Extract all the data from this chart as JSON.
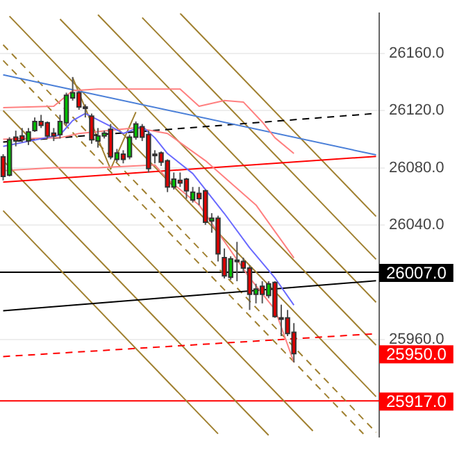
{
  "chart_data": {
    "type": "candlestick",
    "categories": [
      null,
      null,
      null,
      null,
      null,
      null,
      null,
      null,
      null,
      null,
      null,
      null,
      null,
      null,
      null,
      null,
      null,
      null,
      null,
      null,
      null,
      null,
      null,
      null,
      null,
      null,
      null,
      null,
      null,
      null,
      null,
      null,
      null,
      null,
      null,
      null,
      null,
      null,
      null,
      null,
      null,
      null,
      null,
      null,
      null,
      null,
      null,
      null,
      null,
      null,
      null,
      null,
      null,
      null,
      null,
      null,
      null,
      null,
      null,
      null
    ],
    "ohlc": [
      [
        26087.7,
        26089.5,
        26071.2,
        26074.0
      ],
      [
        26074.9,
        26101.4,
        26074.0,
        26099.6
      ],
      [
        26101.4,
        26106.0,
        26095.0,
        26098.7
      ],
      [
        26102.3,
        26107.8,
        26097.8,
        26099.6
      ],
      [
        26098.7,
        26107.8,
        26095.9,
        26105.1
      ],
      [
        26106.0,
        26115.2,
        26105.1,
        26112.4
      ],
      [
        26112.4,
        26117.0,
        26107.8,
        26109.7
      ],
      [
        26111.5,
        26112.4,
        26100.5,
        26102.3
      ],
      [
        26104.2,
        26107.8,
        26098.7,
        26102.3
      ],
      [
        26103.3,
        26117.0,
        26100.5,
        26112.4
      ],
      [
        26111.5,
        26132.5,
        26109.7,
        26130.7
      ],
      [
        26128.9,
        26143.5,
        26127.0,
        26132.5
      ],
      [
        26132.5,
        26133.5,
        26120.6,
        26122.5
      ],
      [
        26122.5,
        26124.3,
        26115.2,
        26121.6
      ],
      [
        26116.1,
        26117.9,
        26096.8,
        26099.6
      ],
      [
        26098.7,
        26107.8,
        26094.1,
        26102.3
      ],
      [
        26102.3,
        26106.0,
        26100.5,
        26104.2
      ],
      [
        26106.9,
        26110.6,
        26085.9,
        26087.7
      ],
      [
        26085.9,
        26093.2,
        26084.0,
        26090.4
      ],
      [
        26089.5,
        26092.3,
        26083.1,
        26085.9
      ],
      [
        26087.7,
        26103.3,
        26085.9,
        26101.4
      ],
      [
        26101.4,
        26112.4,
        26099.6,
        26110.6
      ],
      [
        26108.7,
        26110.6,
        26098.7,
        26101.4
      ],
      [
        26103.3,
        26106.0,
        26076.7,
        26079.5
      ],
      [
        26089.5,
        26092.3,
        26083.1,
        26088.6
      ],
      [
        26090.4,
        26091.4,
        26081.3,
        26084.0
      ],
      [
        26084.9,
        26085.9,
        26063.0,
        26066.6
      ],
      [
        26066.6,
        26076.7,
        26064.8,
        26072.1
      ],
      [
        26071.2,
        26076.7,
        26066.6,
        26069.4
      ],
      [
        26072.1,
        26073.0,
        26058.4,
        26063.9
      ],
      [
        26057.5,
        26066.6,
        26055.7,
        26063.0
      ],
      [
        26062.1,
        26066.6,
        26053.8,
        26058.4
      ],
      [
        26063.9,
        26064.8,
        26040.1,
        26041.9
      ],
      [
        26042.8,
        26048.3,
        26034.6,
        26044.7
      ],
      [
        26044.7,
        26046.5,
        26014.5,
        26019.9
      ],
      [
        26017.2,
        26023.6,
        26002.6,
        26004.4
      ],
      [
        26003.5,
        26018.1,
        26001.7,
        26016.3
      ],
      [
        26015.4,
        26028.2,
        26000.7,
        26014.5
      ],
      [
        26014.5,
        26017.2,
        26007.1,
        26009.9
      ],
      [
        26009.9,
        26011.7,
        25980.6,
        25991.6
      ],
      [
        25991.6,
        25998.9,
        25985.2,
        25995.2
      ],
      [
        25997.1,
        26000.7,
        25985.2,
        25991.6
      ],
      [
        25990.7,
        26000.7,
        25988.8,
        25998.9
      ],
      [
        25999.8,
        26000.7,
        25975.1,
        25976.0
      ],
      [
        25974.2,
        25984.3,
        25962.3,
        25975.1
      ],
      [
        25975.1,
        25980.6,
        25962.3,
        25964.1
      ],
      [
        25965.0,
        25971.4,
        25944.0,
        25950.0
      ],
      null,
      null,
      null,
      null,
      null,
      null,
      null,
      null,
      null,
      null,
      null,
      null,
      null
    ],
    "colors": [
      "#e00000",
      "#00c000",
      "#e00000",
      "#e00000",
      "#00c000",
      "#00c000",
      "#e00000",
      "#e00000",
      "#e00000",
      "#00c000",
      "#00c000",
      "#00c000",
      "#e00000",
      "#e00000",
      "#e00000",
      "#00c000",
      "#00c000",
      "#e00000",
      "#00c000",
      "#e00000",
      "#00c000",
      "#00c000",
      "#e00000",
      "#e00000",
      "#e00000",
      "#e00000",
      "#e00000",
      "#00c000",
      "#e00000",
      "#e00000",
      "#00c000",
      "#e00000",
      "#e00000",
      "#00c000",
      "#e00000",
      "#e00000",
      "#00c000",
      "#e00000",
      "#e00000",
      "#e00000",
      "#00c000",
      "#e00000",
      "#00c000",
      "#e00000",
      "#00c000",
      "#e00000",
      "#e00000",
      null,
      null,
      null,
      null,
      null,
      null,
      null,
      null,
      null,
      null,
      null,
      null,
      null
    ],
    "series": [
      {
        "type": "line",
        "color": "#6a6aff",
        "values": [
          26095,
          null,
          null,
          null,
          null,
          null,
          null,
          null,
          null,
          26103,
          null,
          26113,
          null,
          26118,
          null,
          null,
          null,
          26109,
          null,
          26104,
          null,
          null,
          26109,
          null,
          26101,
          null,
          26090,
          null,
          null,
          null,
          26076,
          null,
          null,
          null,
          null,
          26048,
          null,
          null,
          null,
          26024,
          null,
          null,
          null,
          26003,
          null,
          null,
          25984,
          null,
          null,
          null,
          null,
          null,
          null,
          null,
          null,
          null,
          null,
          null,
          null,
          null
        ]
      },
      {
        "type": "line",
        "color": "#ff8080",
        "values": [
          26122,
          null,
          null,
          null,
          null,
          null,
          null,
          null,
          26123,
          null,
          null,
          26134,
          null,
          null,
          null,
          26135,
          null,
          null,
          null,
          null,
          null,
          null,
          null,
          null,
          null,
          null,
          null,
          null,
          26135,
          null,
          null,
          26123,
          null,
          null,
          null,
          26127,
          null,
          null,
          26126,
          null,
          null,
          26112,
          null,
          26101,
          null,
          null,
          26090,
          null,
          null,
          null,
          null,
          null,
          null,
          null,
          null,
          null,
          null,
          null,
          null,
          null
        ]
      },
      {
        "type": "line",
        "color": "#ff8080",
        "values": [
          26100,
          null,
          null,
          null,
          null,
          null,
          null,
          null,
          null,
          26101,
          null,
          null,
          26104,
          null,
          null,
          null,
          null,
          null,
          null,
          null,
          null,
          26108,
          null,
          null,
          null,
          null,
          26104,
          null,
          null,
          null,
          null,
          null,
          26085,
          null,
          null,
          null,
          null,
          null,
          null,
          null,
          26054,
          null,
          null,
          null,
          null,
          null,
          26017,
          null,
          null,
          null,
          null,
          null,
          null,
          null,
          null,
          null,
          null,
          null,
          null,
          null
        ]
      },
      {
        "type": "line",
        "color": "#ff8080",
        "values": [
          26078,
          null,
          null,
          null,
          null,
          null,
          null,
          null,
          26080,
          null,
          null,
          null,
          null,
          null,
          null,
          26080,
          null,
          null,
          null,
          null,
          null,
          null,
          null,
          null,
          26082,
          null,
          26072,
          null,
          null,
          null,
          null,
          26054,
          null,
          null,
          null,
          null,
          null,
          null,
          null,
          26003,
          null,
          null,
          null,
          25981,
          null,
          null,
          25944,
          null,
          null,
          null,
          null,
          null,
          null,
          null,
          null,
          null,
          null,
          null,
          null,
          null
        ]
      },
      {
        "type": "line",
        "color": "#4a7fd8",
        "values": [
          26145,
          null,
          null,
          null,
          null,
          null,
          null,
          null,
          null,
          null,
          null,
          null,
          null,
          null,
          null,
          null,
          null,
          null,
          null,
          null,
          null,
          null,
          null,
          null,
          null,
          null,
          null,
          null,
          null,
          null,
          null,
          null,
          null,
          null,
          null,
          null,
          null,
          null,
          null,
          null,
          null,
          null,
          null,
          null,
          null,
          null,
          null,
          null,
          null,
          null,
          null,
          null,
          null,
          null,
          null,
          null,
          null,
          null,
          null,
          26089
        ]
      },
      {
        "type": "line",
        "color": "#ff0000",
        "values": [
          26070,
          null,
          null,
          null,
          null,
          null,
          null,
          null,
          null,
          null,
          null,
          null,
          null,
          null,
          null,
          null,
          null,
          null,
          null,
          null,
          null,
          null,
          null,
          null,
          null,
          null,
          null,
          null,
          null,
          null,
          null,
          null,
          null,
          null,
          null,
          null,
          null,
          null,
          null,
          null,
          null,
          null,
          null,
          null,
          null,
          null,
          null,
          null,
          null,
          null,
          null,
          null,
          null,
          null,
          null,
          null,
          null,
          null,
          null,
          26088
        ]
      },
      {
        "type": "line",
        "color": "#000000",
        "line_style": "dashed",
        "values": [
          26098,
          null,
          null,
          null,
          null,
          null,
          null,
          null,
          null,
          null,
          null,
          null,
          null,
          null,
          null,
          null,
          null,
          null,
          null,
          null,
          null,
          null,
          null,
          null,
          null,
          null,
          null,
          null,
          null,
          null,
          null,
          null,
          null,
          null,
          null,
          null,
          null,
          null,
          null,
          null,
          null,
          null,
          null,
          null,
          null,
          null,
          null,
          null,
          null,
          null,
          null,
          null,
          null,
          null,
          null,
          null,
          null,
          null,
          null,
          26118
        ]
      },
      {
        "type": "line",
        "color": "#000000",
        "values": [
          25980,
          null,
          null,
          null,
          null,
          null,
          null,
          null,
          null,
          null,
          null,
          null,
          null,
          null,
          null,
          null,
          null,
          null,
          null,
          null,
          null,
          null,
          null,
          null,
          null,
          null,
          null,
          null,
          null,
          null,
          null,
          null,
          null,
          null,
          null,
          null,
          null,
          null,
          null,
          null,
          null,
          null,
          null,
          null,
          null,
          null,
          null,
          null,
          null,
          null,
          null,
          null,
          null,
          null,
          null,
          null,
          null,
          null,
          null,
          26001
        ]
      },
      {
        "type": "line",
        "color": "#ff0000",
        "line_style": "dashed",
        "values": [
          25948,
          null,
          null,
          null,
          null,
          null,
          null,
          null,
          null,
          null,
          null,
          null,
          null,
          null,
          null,
          null,
          null,
          null,
          null,
          null,
          null,
          null,
          null,
          null,
          null,
          null,
          null,
          null,
          null,
          null,
          null,
          null,
          null,
          null,
          null,
          null,
          null,
          null,
          null,
          null,
          null,
          null,
          null,
          null,
          null,
          null,
          null,
          null,
          null,
          null,
          null,
          null,
          null,
          null,
          null,
          null,
          null,
          null,
          null,
          25964
        ]
      },
      {
        "type": "line",
        "color": "#a08030",
        "values": [
          null,
          null,
          null,
          null,
          null,
          null,
          null,
          null,
          null,
          null,
          null,
          26143,
          null,
          null,
          null,
          null,
          null,
          26079,
          null,
          null,
          null,
          26119,
          null,
          null,
          null,
          null,
          null,
          null,
          null,
          null,
          null,
          null,
          null,
          null,
          null,
          null,
          null,
          null,
          null,
          null,
          null,
          null,
          null,
          null,
          null,
          null,
          null,
          null,
          null,
          null,
          null,
          null,
          null,
          null,
          null,
          null,
          null,
          null,
          null,
          null
        ]
      },
      {
        "type": "line",
        "color": "#a08030",
        "values": [
          26050,
          null,
          null,
          null,
          null,
          null,
          null,
          null,
          null,
          null,
          null,
          null,
          null,
          null,
          null,
          null,
          null,
          null,
          null,
          null,
          null,
          null,
          null,
          null,
          null,
          null,
          null,
          null,
          null,
          null,
          null,
          null,
          null,
          null,
          25894,
          null,
          null,
          null,
          null,
          null,
          null,
          null,
          null,
          null,
          null,
          null,
          null,
          null,
          null,
          null,
          null,
          null,
          null,
          null,
          null,
          null,
          null,
          null,
          null,
          null
        ]
      },
      {
        "type": "line",
        "color": "#a08030",
        "values": [
          26085,
          null,
          null,
          null,
          null,
          null,
          null,
          null,
          null,
          null,
          null,
          null,
          null,
          null,
          null,
          null,
          null,
          null,
          null,
          null,
          null,
          null,
          null,
          null,
          null,
          null,
          null,
          null,
          null,
          null,
          null,
          null,
          null,
          null,
          null,
          null,
          null,
          null,
          null,
          null,
          null,
          null,
          25893,
          null,
          null,
          null,
          null,
          null,
          null,
          null,
          null,
          null,
          null,
          null,
          null,
          null,
          null,
          null,
          null,
          null
        ]
      },
      {
        "type": "line",
        "color": "#a08030",
        "values": [
          26120,
          null,
          null,
          null,
          null,
          null,
          null,
          null,
          null,
          null,
          null,
          null,
          null,
          null,
          null,
          null,
          null,
          null,
          null,
          null,
          null,
          null,
          null,
          null,
          null,
          null,
          null,
          null,
          null,
          null,
          null,
          null,
          null,
          null,
          null,
          null,
          null,
          null,
          null,
          null,
          null,
          null,
          null,
          null,
          null,
          null,
          null,
          null,
          null,
          25896,
          null,
          null,
          null,
          null,
          null,
          null,
          null,
          null,
          null,
          null
        ]
      },
      {
        "type": "line",
        "color": "#a08030",
        "values": [
          null,
          26186,
          null,
          null,
          null,
          null,
          null,
          null,
          null,
          null,
          null,
          null,
          null,
          null,
          null,
          null,
          null,
          null,
          null,
          null,
          null,
          null,
          null,
          null,
          null,
          null,
          null,
          null,
          null,
          null,
          null,
          null,
          null,
          null,
          null,
          null,
          null,
          null,
          null,
          null,
          null,
          null,
          null,
          null,
          null,
          null,
          null,
          null,
          null,
          null,
          null,
          null,
          null,
          null,
          null,
          null,
          null,
          null,
          null,
          25920
        ]
      },
      {
        "type": "line",
        "color": "#a08030",
        "values": [
          null,
          null,
          null,
          null,
          null,
          null,
          null,
          null,
          null,
          26184,
          null,
          null,
          null,
          null,
          null,
          null,
          null,
          null,
          null,
          null,
          null,
          null,
          null,
          null,
          null,
          null,
          null,
          null,
          null,
          null,
          null,
          null,
          null,
          null,
          null,
          null,
          null,
          null,
          null,
          null,
          null,
          null,
          null,
          null,
          null,
          null,
          null,
          null,
          null,
          null,
          null,
          null,
          null,
          null,
          null,
          null,
          null,
          null,
          null,
          25956
        ]
      },
      {
        "type": "line",
        "color": "#a08030",
        "values": [
          null,
          null,
          null,
          null,
          null,
          null,
          null,
          null,
          null,
          null,
          null,
          null,
          null,
          null,
          null,
          26187,
          null,
          null,
          null,
          null,
          null,
          null,
          null,
          null,
          null,
          null,
          null,
          null,
          null,
          null,
          null,
          null,
          null,
          null,
          null,
          null,
          null,
          null,
          null,
          null,
          null,
          null,
          null,
          null,
          null,
          null,
          null,
          null,
          null,
          null,
          null,
          null,
          null,
          null,
          null,
          null,
          null,
          null,
          null,
          25986
        ]
      },
      {
        "type": "line",
        "color": "#a08030",
        "values": [
          null,
          null,
          null,
          null,
          null,
          null,
          null,
          null,
          null,
          null,
          null,
          null,
          null,
          null,
          null,
          null,
          null,
          null,
          null,
          null,
          null,
          null,
          26185,
          null,
          null,
          null,
          null,
          null,
          null,
          null,
          null,
          null,
          null,
          null,
          null,
          null,
          null,
          null,
          null,
          null,
          null,
          null,
          null,
          null,
          null,
          null,
          null,
          null,
          null,
          null,
          null,
          null,
          null,
          null,
          null,
          null,
          null,
          null,
          null,
          26016
        ]
      },
      {
        "type": "line",
        "color": "#a08030",
        "values": [
          null,
          null,
          null,
          null,
          null,
          null,
          null,
          null,
          null,
          null,
          null,
          null,
          null,
          null,
          null,
          null,
          null,
          null,
          null,
          null,
          null,
          null,
          null,
          null,
          null,
          null,
          null,
          null,
          26188,
          null,
          null,
          null,
          null,
          null,
          null,
          null,
          null,
          null,
          null,
          null,
          null,
          null,
          null,
          null,
          null,
          null,
          null,
          null,
          null,
          null,
          null,
          null,
          null,
          null,
          null,
          null,
          null,
          null,
          null,
          26046
        ]
      },
      {
        "type": "line",
        "color": "#a08030",
        "line_style": "dashed",
        "values": [
          26155,
          null,
          null,
          null,
          null,
          null,
          null,
          null,
          null,
          null,
          null,
          null,
          null,
          null,
          null,
          null,
          null,
          null,
          null,
          null,
          null,
          null,
          null,
          null,
          null,
          null,
          null,
          null,
          null,
          null,
          null,
          null,
          null,
          null,
          null,
          null,
          null,
          null,
          null,
          null,
          null,
          null,
          null,
          null,
          null,
          null,
          null,
          null,
          null,
          null,
          null,
          null,
          null,
          null,
          null,
          null,
          null,
          25894,
          null,
          null
        ]
      },
      {
        "type": "line",
        "color": "#a08030",
        "line_style": "dashed",
        "values": [
          26166,
          null,
          null,
          null,
          null,
          null,
          null,
          null,
          null,
          null,
          null,
          null,
          null,
          null,
          null,
          null,
          null,
          null,
          null,
          null,
          null,
          null,
          null,
          null,
          null,
          null,
          null,
          null,
          null,
          null,
          null,
          null,
          null,
          null,
          null,
          null,
          null,
          null,
          null,
          null,
          null,
          null,
          null,
          null,
          null,
          null,
          null,
          null,
          null,
          null,
          null,
          null,
          null,
          null,
          null,
          null,
          null,
          null,
          null,
          25895
        ]
      }
    ],
    "ylim": [
      25892,
      26188
    ],
    "yticks": [
      {
        "value": 25960,
        "label": "25960.0"
      },
      {
        "value": 26040,
        "label": "26040.0"
      },
      {
        "value": 26080,
        "label": "26080.0"
      },
      {
        "value": 26120,
        "label": "26120.0"
      },
      {
        "value": 26160,
        "label": "26160.0"
      }
    ],
    "ref_lines": [
      {
        "axis": "y",
        "value": 26007,
        "label": "26007.0",
        "color": "#000000"
      },
      {
        "axis": "y",
        "value": 25917,
        "label": "25917.0",
        "color": "#ff0000"
      }
    ],
    "annotations": [
      "25950.0"
    ],
    "grid": "y",
    "legend": false,
    "tick_labels": "y",
    "marker": "none"
  }
}
